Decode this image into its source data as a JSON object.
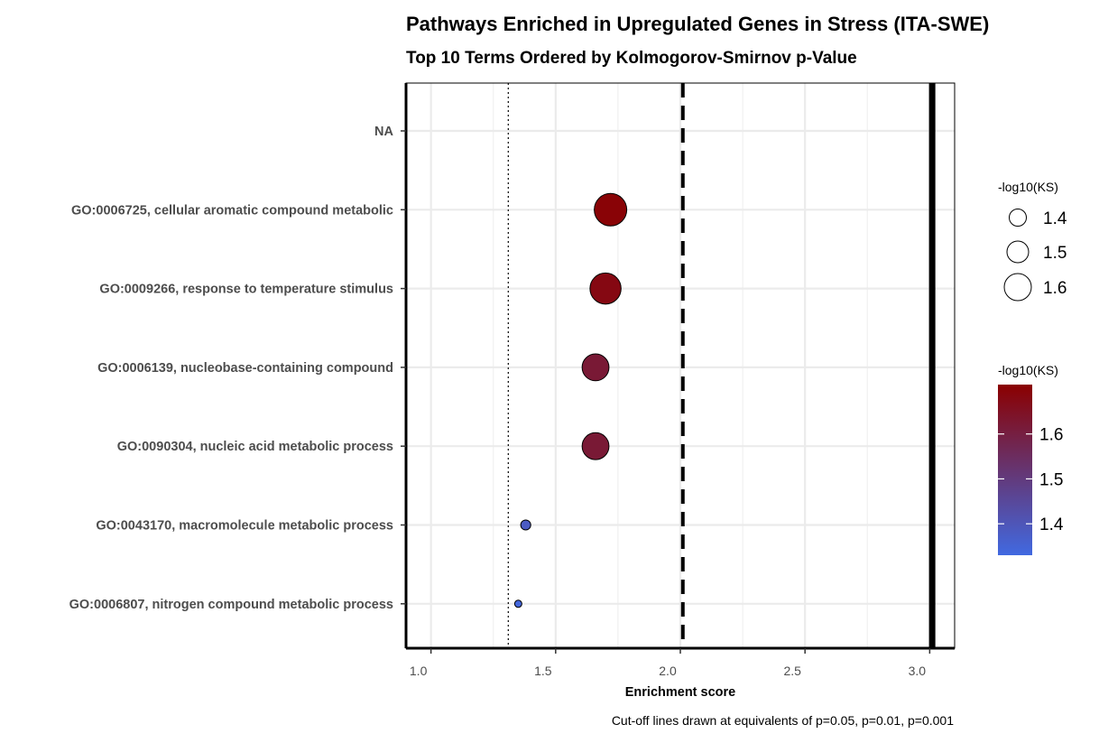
{
  "chart_data": {
    "type": "scatter",
    "title": "Pathways Enriched in Upregulated Genes in Stress (ITA-SWE)",
    "subtitle": "Top 10 Terms Ordered by Kolmogorov-Smirnov p-Value",
    "xlabel": "Enrichment score",
    "ylabel": "",
    "caption": "Cut-off lines drawn at equivalents of p=0.05, p=0.01, p=0.001",
    "xlim": [
      0.9,
      3.1
    ],
    "x_ticks": [
      1.0,
      1.5,
      2.0,
      2.5,
      3.0
    ],
    "x_tick_labels": [
      "1.0",
      "1.5",
      "2.0",
      "2.5",
      "3.0"
    ],
    "grid": true,
    "categories": [
      "NA",
      "GO:0006725, cellular aromatic compound metabolic",
      "GO:0009266, response to temperature stimulus",
      "GO:0006139, nucleobase-containing compound",
      "GO:0090304, nucleic acid metabolic process",
      "GO:0043170, macromolecule metabolic process",
      "GO:0006807, nitrogen compound metabolic process"
    ],
    "points": [
      {
        "category": "GO:0006725, cellular aromatic compound metabolic",
        "x": 1.72,
        "neglog10ks": 1.7
      },
      {
        "category": "GO:0009266, response to temperature stimulus",
        "x": 1.7,
        "neglog10ks": 1.68
      },
      {
        "category": "GO:0006139, nucleobase-containing compound",
        "x": 1.66,
        "neglog10ks": 1.62
      },
      {
        "category": "GO:0090304, nucleic acid metabolic process",
        "x": 1.66,
        "neglog10ks": 1.62
      },
      {
        "category": "GO:0043170, macromolecule metabolic process",
        "x": 1.38,
        "neglog10ks": 1.38
      },
      {
        "category": "GO:0006807, nitrogen compound metabolic process",
        "x": 1.35,
        "neglog10ks": 1.34
      }
    ],
    "cutoff_lines": [
      {
        "label": "p=0.05",
        "x": 1.31,
        "style": "dotted"
      },
      {
        "label": "p=0.01",
        "x": 2.01,
        "style": "dashed"
      },
      {
        "label": "p=0.001",
        "x": 3.01,
        "style": "solid"
      }
    ],
    "size_legend": {
      "title": "-log10(KS)",
      "values": [
        1.4,
        1.5,
        1.6
      ],
      "labels": [
        "1.4",
        "1.5",
        "1.6"
      ]
    },
    "color_legend": {
      "title": "-log10(KS)",
      "min": 1.33,
      "max": 1.71,
      "low_color": "#4169E1",
      "high_color": "#8B0000",
      "ticks": [
        1.4,
        1.5,
        1.6
      ],
      "labels": [
        "1.4",
        "1.5",
        "1.6"
      ]
    }
  }
}
